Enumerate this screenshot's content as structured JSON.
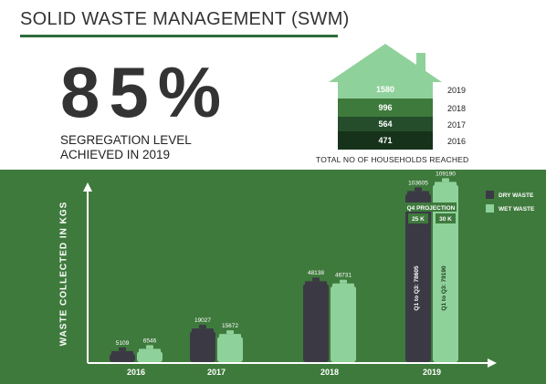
{
  "header": {
    "title": "SOLID WASTE MANAGEMENT (SWM)",
    "headline_value": "85%",
    "headline_caption_line1": "SEGREGATION LEVEL",
    "headline_caption_line2": "ACHIEVED IN 2019"
  },
  "households": {
    "caption": "TOTAL NO OF HOUSEHOLDS REACHED",
    "rows": [
      {
        "year": "2019",
        "value": "1580"
      },
      {
        "year": "2018",
        "value": "996"
      },
      {
        "year": "2017",
        "value": "564"
      },
      {
        "year": "2016",
        "value": "471"
      }
    ]
  },
  "colors": {
    "panel": "#3f7a3d",
    "dry": "#3b3a44",
    "wet": "#8fd19a",
    "house_light": "#8fd19a",
    "house_mid": "#3f7a3d",
    "house_dark": "#254d2b",
    "house_darkest": "#16321b"
  },
  "chart_data": {
    "type": "bar",
    "ylabel": "WASTE COLLECTED IN KGS",
    "xlabel": "",
    "categories": [
      "2016",
      "2017",
      "2018",
      "2019"
    ],
    "series": [
      {
        "name": "DRY WASTE",
        "values": [
          5109,
          19027,
          48138,
          103605
        ]
      },
      {
        "name": "WET WASTE",
        "values": [
          6546,
          15672,
          46731,
          109190
        ]
      }
    ],
    "ylim": [
      0,
      115000
    ],
    "legend": "top-right",
    "annotations": {
      "projection_label": "Q4 PROJECTION",
      "projection_dry": "25 K",
      "projection_wet": "30 K",
      "q_dry": "Q1 to Q3: 78605",
      "q_wet": "Q1 to Q3: 79190"
    }
  }
}
